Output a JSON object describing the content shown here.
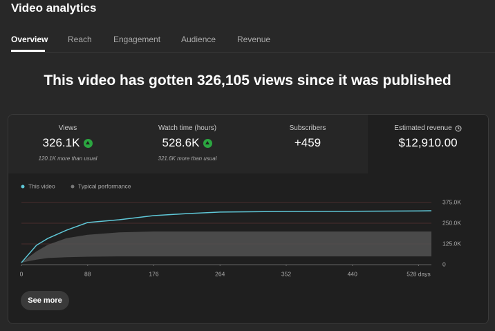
{
  "header": {
    "title": "Video analytics"
  },
  "tabs": [
    "Overview",
    "Reach",
    "Engagement",
    "Audience",
    "Revenue"
  ],
  "headline": "This video has gotten 326,105 views since it was published",
  "metrics": [
    {
      "label": "Views",
      "value": "326.1K",
      "note": "120.1K more than usual"
    },
    {
      "label": "Watch time (hours)",
      "value": "528.6K",
      "note": "321.6K more than usual"
    },
    {
      "label": "Subscribers",
      "value": "+459"
    },
    {
      "label": "Estimated revenue",
      "value": "$12,910.00"
    }
  ],
  "chart_data": {
    "type": "line",
    "x": [
      0,
      8,
      20,
      35,
      60,
      88,
      130,
      176,
      220,
      264,
      352,
      440,
      528,
      545
    ],
    "series": [
      {
        "name": "This video",
        "color": "#5fc8d8",
        "values": [
          12000,
          54000,
          117000,
          158000,
          208000,
          254000,
          271000,
          296000,
          308000,
          317000,
          321000,
          322000,
          324000,
          325000
        ]
      },
      {
        "name": "Typical performance",
        "color": "#555555",
        "values": [
          12000,
          40000,
          80000,
          120000,
          160000,
          180000,
          195000,
          200000,
          200000,
          200000,
          200000,
          200000,
          200000,
          200000
        ],
        "low": [
          12000,
          20000,
          30000,
          40000,
          45000,
          48000,
          50000,
          50000,
          50000,
          50000,
          50000,
          50000,
          50000,
          50000
        ]
      }
    ],
    "xlim": [
      0,
      545
    ],
    "ylim": [
      0,
      375000
    ],
    "xticks": [
      0,
      88,
      176,
      264,
      352,
      440,
      {
        "value": 528,
        "label": "528 days"
      }
    ],
    "yticks": [
      0,
      {
        "value": 125000,
        "label": "125.0K"
      },
      {
        "value": 250000,
        "label": "250.0K"
      },
      {
        "value": 375000,
        "label": "375.0K"
      }
    ],
    "grid": true
  },
  "button": "See more"
}
